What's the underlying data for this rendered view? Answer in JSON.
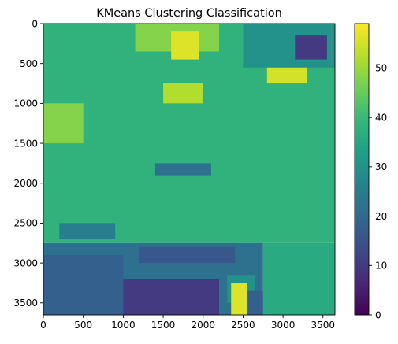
{
  "chart_data": {
    "type": "heatmap",
    "title": "KMeans Clustering Classification",
    "xlabel": "",
    "ylabel": "",
    "xlim": [
      0,
      3650
    ],
    "ylim": [
      3650,
      0
    ],
    "x_ticks": [
      0,
      500,
      1000,
      1500,
      2000,
      2500,
      3000,
      3500
    ],
    "y_ticks": [
      0,
      500,
      1000,
      1500,
      2000,
      2500,
      3000,
      3500
    ],
    "colorbar": {
      "colormap": "viridis",
      "range": [
        0,
        59
      ],
      "ticks": [
        0,
        10,
        20,
        30,
        40,
        50
      ]
    },
    "colormap_stops": [
      "#440154",
      "#482878",
      "#3e4a89",
      "#31688e",
      "#26828e",
      "#1f9e89",
      "#35b779",
      "#6ece58",
      "#b5de2b",
      "#fde725"
    ],
    "regions": [
      {
        "x": [
          0,
          3650
        ],
        "y": [
          0,
          2750
        ],
        "value": 38
      },
      {
        "x": [
          2750,
          3650
        ],
        "y": [
          2750,
          3650
        ],
        "value": 36
      },
      {
        "x": [
          1150,
          2200
        ],
        "y": [
          0,
          350
        ],
        "value": 48
      },
      {
        "x": [
          1600,
          1950
        ],
        "y": [
          100,
          450
        ],
        "value": 56
      },
      {
        "x": [
          2800,
          3300
        ],
        "y": [
          450,
          750
        ],
        "value": 55
      },
      {
        "x": [
          2500,
          3650
        ],
        "y": [
          0,
          550
        ],
        "value": 30
      },
      {
        "x": [
          3150,
          3550
        ],
        "y": [
          150,
          450
        ],
        "value": 10
      },
      {
        "x": [
          1500,
          2000
        ],
        "y": [
          750,
          1000
        ],
        "value": 52
      },
      {
        "x": [
          0,
          500
        ],
        "y": [
          1000,
          1500
        ],
        "value": 48
      },
      {
        "x": [
          1400,
          2100
        ],
        "y": [
          1750,
          1900
        ],
        "value": 22
      },
      {
        "x": [
          200,
          900
        ],
        "y": [
          2500,
          2700
        ],
        "value": 25
      },
      {
        "x": [
          0,
          2750
        ],
        "y": [
          2750,
          3650
        ],
        "value": 22
      },
      {
        "x": [
          0,
          1000
        ],
        "y": [
          2900,
          3650
        ],
        "value": 18
      },
      {
        "x": [
          1000,
          2200
        ],
        "y": [
          3200,
          3650
        ],
        "value": 10
      },
      {
        "x": [
          2300,
          2650
        ],
        "y": [
          3150,
          3500
        ],
        "value": 30
      },
      {
        "x": [
          2350,
          2550
        ],
        "y": [
          3250,
          3650
        ],
        "value": 56
      },
      {
        "x": [
          2550,
          2750
        ],
        "y": [
          3350,
          3650
        ],
        "value": 18
      },
      {
        "x": [
          1200,
          2400
        ],
        "y": [
          2800,
          3000
        ],
        "value": 16
      }
    ]
  }
}
